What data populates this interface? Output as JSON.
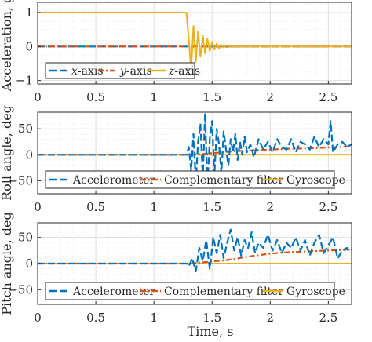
{
  "figure": {
    "xlabel": "Time, s",
    "colors": {
      "series_blue": "#0072BD",
      "series_orange": "#D95319",
      "series_yellow": "#EDB120",
      "grid": "#e6e6e6",
      "axes": "#262626"
    }
  },
  "chart_data": [
    {
      "type": "line",
      "ylabel": "Acceleration, g",
      "xlim": [
        0,
        2.7
      ],
      "ylim": [
        -1.1,
        1.3
      ],
      "xticks": [
        "0",
        "0.5",
        "1",
        "1.5",
        "2",
        "2.5"
      ],
      "yticks": [
        "-1",
        "0",
        "1"
      ],
      "grid": true,
      "legend_position": "bottom-left",
      "series": [
        {
          "name": "x-axis",
          "legend_html": "<tspan font-style='italic'>x</tspan>-axis",
          "style": "dashed",
          "color": "#0072BD",
          "x": [
            0,
            2.7
          ],
          "y": [
            0,
            0
          ]
        },
        {
          "name": "y-axis",
          "legend_html": "<tspan font-style='italic'>y</tspan>-axis",
          "style": "dashdot",
          "color": "#D95319",
          "x": [
            0,
            2.7
          ],
          "y": [
            0,
            0
          ]
        },
        {
          "name": "z-axis",
          "legend_html": "<tspan font-style='italic'>z</tspan>-axis",
          "style": "solid",
          "color": "#EDB120",
          "x": [
            0,
            1.28,
            1.3,
            1.32,
            1.34,
            1.36,
            1.38,
            1.4,
            1.42,
            1.44,
            1.46,
            1.48,
            1.5,
            1.52,
            1.54,
            1.56,
            1.58,
            1.6,
            1.62,
            1.65,
            1.7,
            2.7
          ],
          "y": [
            1,
            1,
            0.2,
            -0.7,
            0.6,
            -0.45,
            0.45,
            -0.3,
            0.32,
            -0.2,
            0.22,
            -0.14,
            0.14,
            -0.09,
            0.09,
            -0.05,
            0.05,
            -0.03,
            0.03,
            0.01,
            0,
            0
          ]
        }
      ]
    },
    {
      "type": "line",
      "ylabel": "Roll angle, deg",
      "xlim": [
        0,
        2.7
      ],
      "ylim": [
        -75,
        82
      ],
      "xticks": [
        "0",
        "0.5",
        "1",
        "1.5",
        "2",
        "2.5"
      ],
      "yticks": [
        "-50",
        "0",
        "50"
      ],
      "grid": true,
      "legend_position": "bottom",
      "series": [
        {
          "name": "Accelerometer",
          "style": "dashed",
          "color": "#0072BD",
          "x": [
            0,
            1.28,
            1.3,
            1.32,
            1.34,
            1.36,
            1.38,
            1.4,
            1.42,
            1.44,
            1.46,
            1.48,
            1.5,
            1.52,
            1.54,
            1.56,
            1.58,
            1.6,
            1.62,
            1.64,
            1.66,
            1.68,
            1.7,
            1.72,
            1.74,
            1.76,
            1.78,
            1.8,
            1.83,
            1.86,
            1.9,
            1.94,
            1.98,
            2.02,
            2.06,
            2.1,
            2.14,
            2.18,
            2.22,
            2.26,
            2.3,
            2.34,
            2.38,
            2.42,
            2.46,
            2.5,
            2.52,
            2.54,
            2.58,
            2.62,
            2.66,
            2.7
          ],
          "y": [
            0,
            0,
            15,
            -30,
            40,
            -55,
            25,
            60,
            -45,
            80,
            -60,
            30,
            65,
            -40,
            50,
            20,
            -35,
            45,
            10,
            -20,
            30,
            5,
            40,
            -10,
            25,
            0,
            35,
            5,
            20,
            -5,
            30,
            10,
            25,
            5,
            30,
            15,
            10,
            30,
            5,
            25,
            20,
            10,
            35,
            15,
            30,
            20,
            65,
            5,
            20,
            25,
            15,
            20
          ]
        },
        {
          "name": "Complementary filter",
          "style": "dashdot",
          "color": "#D95319",
          "x": [
            0,
            1.3,
            1.4,
            1.5,
            1.6,
            1.7,
            1.8,
            1.9,
            2.0,
            2.1,
            2.2,
            2.3,
            2.4,
            2.5,
            2.6,
            2.7
          ],
          "y": [
            0,
            0,
            1,
            3,
            5,
            7,
            8,
            9,
            10,
            11,
            12,
            12,
            13,
            14,
            15,
            16
          ]
        },
        {
          "name": "Gyroscope",
          "style": "solid",
          "color": "#EDB120",
          "x": [
            0,
            2.7
          ],
          "y": [
            0,
            0
          ]
        }
      ]
    },
    {
      "type": "line",
      "ylabel": "Pitch angle, deg",
      "xlim": [
        0,
        2.7
      ],
      "ylim": [
        -78,
        78
      ],
      "xticks": [
        "0",
        "0.5",
        "1",
        "1.5",
        "2",
        "2.5"
      ],
      "yticks": [
        "-50",
        "0",
        "50"
      ],
      "grid": true,
      "legend_position": "bottom",
      "series": [
        {
          "name": "Accelerometer",
          "style": "dashed",
          "color": "#0072BD",
          "x": [
            0,
            1.28,
            1.3,
            1.33,
            1.36,
            1.39,
            1.42,
            1.45,
            1.48,
            1.51,
            1.54,
            1.57,
            1.6,
            1.63,
            1.66,
            1.69,
            1.72,
            1.75,
            1.78,
            1.81,
            1.84,
            1.87,
            1.9,
            1.94,
            1.98,
            2.02,
            2.06,
            2.1,
            2.14,
            2.18,
            2.22,
            2.26,
            2.3,
            2.34,
            2.38,
            2.42,
            2.46,
            2.5,
            2.54,
            2.58,
            2.62,
            2.66,
            2.7
          ],
          "y": [
            0,
            0,
            -5,
            10,
            -15,
            30,
            5,
            45,
            -10,
            50,
            20,
            55,
            10,
            40,
            65,
            25,
            50,
            15,
            45,
            30,
            60,
            20,
            40,
            30,
            55,
            25,
            45,
            20,
            40,
            30,
            50,
            25,
            45,
            15,
            40,
            55,
            20,
            35,
            50,
            10,
            25,
            30,
            20
          ]
        },
        {
          "name": "Complementary filter",
          "style": "dashdot",
          "color": "#D95319",
          "x": [
            0,
            1.3,
            1.4,
            1.5,
            1.6,
            1.7,
            1.8,
            1.9,
            2.0,
            2.1,
            2.2,
            2.3,
            2.4,
            2.5,
            2.6,
            2.7
          ],
          "y": [
            0,
            0,
            2,
            4,
            6,
            9,
            13,
            16,
            19,
            21,
            22,
            23,
            24,
            25,
            26,
            27
          ]
        },
        {
          "name": "Gyroscope",
          "style": "solid",
          "color": "#EDB120",
          "x": [
            0,
            2.7
          ],
          "y": [
            0,
            0
          ]
        }
      ]
    }
  ]
}
